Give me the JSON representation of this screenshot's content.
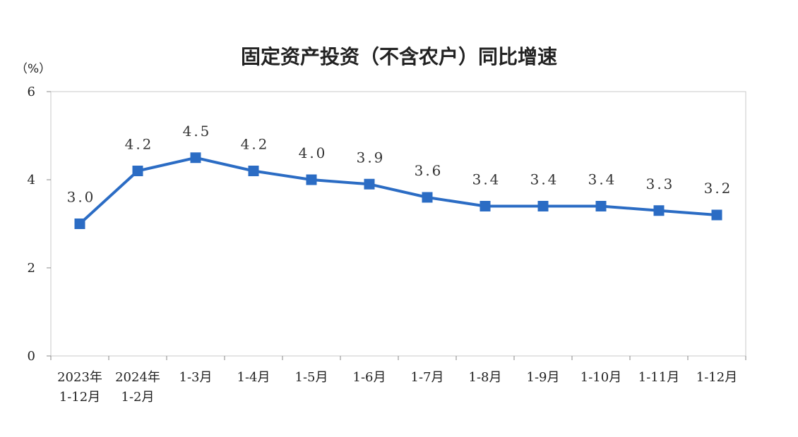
{
  "chart_data": {
    "type": "line",
    "title": "固定资产投资（不含农户）同比增速",
    "yunit": "（%）",
    "ylim": [
      0,
      6
    ],
    "yticks": [
      0,
      2,
      4,
      6
    ],
    "grid": false,
    "categories": [
      [
        "2023年",
        "1-12月"
      ],
      [
        "2024年",
        "1-2月"
      ],
      [
        "1-3月"
      ],
      [
        "1-4月"
      ],
      [
        "1-5月"
      ],
      [
        "1-6月"
      ],
      [
        "1-7月"
      ],
      [
        "1-8月"
      ],
      [
        "1-9月"
      ],
      [
        "1-10月"
      ],
      [
        "1-11月"
      ],
      [
        "1-12月"
      ]
    ],
    "series": [
      {
        "values": [
          3.0,
          4.2,
          4.5,
          4.2,
          4.0,
          3.9,
          3.6,
          3.4,
          3.4,
          3.4,
          3.3,
          3.2
        ],
        "labels": [
          "3.0",
          "4.2",
          "4.5",
          "4.2",
          "4.0",
          "3.9",
          "3.6",
          "3.4",
          "3.4",
          "3.4",
          "3.3",
          "3.2"
        ],
        "color": "#2b6cc4"
      }
    ]
  }
}
